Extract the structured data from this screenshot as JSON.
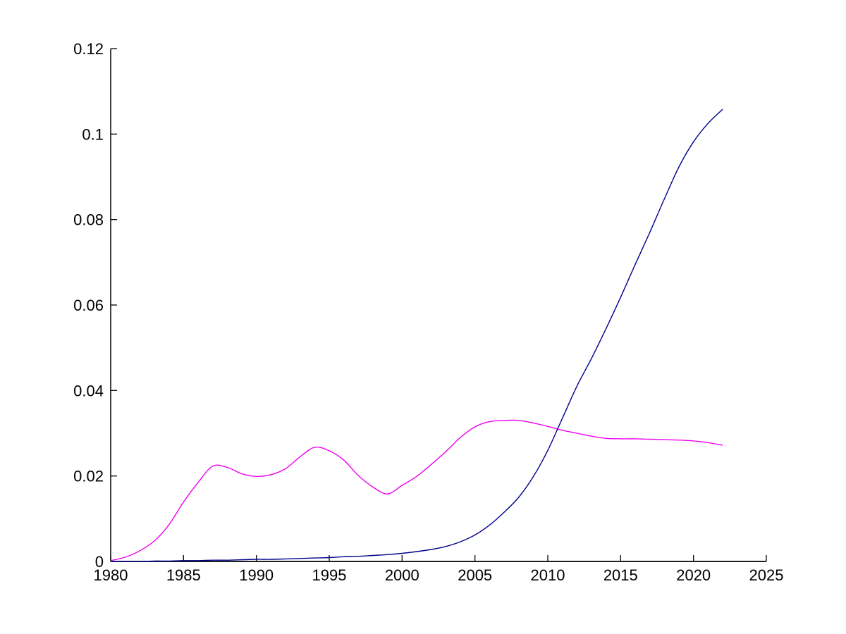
{
  "chart_data": {
    "type": "line",
    "title": "",
    "xlabel": "",
    "ylabel": "",
    "xlim": [
      1980,
      2025
    ],
    "ylim": [
      0,
      0.12
    ],
    "grid": false,
    "legend": "none",
    "box": "off",
    "tick_direction": "in",
    "background_color": "#ffffff",
    "axis_color": "#000000",
    "x_ticks": [
      1980,
      1985,
      1990,
      1995,
      2000,
      2005,
      2010,
      2015,
      2020,
      2025
    ],
    "x_tick_labels": [
      "1980",
      "1985",
      "1990",
      "1995",
      "2000",
      "2005",
      "2010",
      "2015",
      "2020",
      "2025"
    ],
    "y_ticks": [
      0,
      0.02,
      0.04,
      0.06,
      0.08,
      0.1,
      0.12
    ],
    "y_tick_labels": [
      "0",
      "0.02",
      "0.04",
      "0.06",
      "0.08",
      "0.1",
      "0.12"
    ],
    "x": [
      1980,
      1981,
      1982,
      1983,
      1984,
      1985,
      1986,
      1987,
      1988,
      1989,
      1990,
      1991,
      1992,
      1993,
      1994,
      1995,
      1996,
      1997,
      1998,
      1999,
      2000,
      2001,
      2002,
      2003,
      2004,
      2005,
      2006,
      2007,
      2008,
      2009,
      2010,
      2011,
      2012,
      2013,
      2014,
      2015,
      2016,
      2017,
      2018,
      2019,
      2020,
      2021,
      2022
    ],
    "series": [
      {
        "name": "magenta-series",
        "color": "#EE00EE",
        "values": [
          0.0002,
          0.001,
          0.0025,
          0.0048,
          0.0086,
          0.0139,
          0.0185,
          0.0223,
          0.022,
          0.0205,
          0.0199,
          0.0203,
          0.0217,
          0.0245,
          0.0267,
          0.0259,
          0.0237,
          0.0201,
          0.0174,
          0.0158,
          0.0178,
          0.0199,
          0.0227,
          0.0257,
          0.029,
          0.0315,
          0.0327,
          0.033,
          0.033,
          0.0324,
          0.0316,
          0.0307,
          0.03,
          0.0293,
          0.0288,
          0.0287,
          0.0287,
          0.0286,
          0.0285,
          0.0284,
          0.0282,
          0.0278,
          0.0272
        ]
      },
      {
        "name": "dark-blue-series",
        "color": "#00008B",
        "values": [
          0.0,
          0.0,
          0.0,
          0.0001,
          0.0001,
          0.0002,
          0.0002,
          0.0003,
          0.0003,
          0.0004,
          0.0005,
          0.0005,
          0.0006,
          0.0007,
          0.0008,
          0.0009,
          0.0011,
          0.0012,
          0.0014,
          0.0016,
          0.0019,
          0.0023,
          0.0028,
          0.0035,
          0.0046,
          0.0062,
          0.0085,
          0.0115,
          0.015,
          0.0198,
          0.026,
          0.0335,
          0.041,
          0.0475,
          0.0545,
          0.0618,
          0.0695,
          0.077,
          0.0848,
          0.0923,
          0.0982,
          0.1025,
          0.1058
        ]
      }
    ]
  }
}
